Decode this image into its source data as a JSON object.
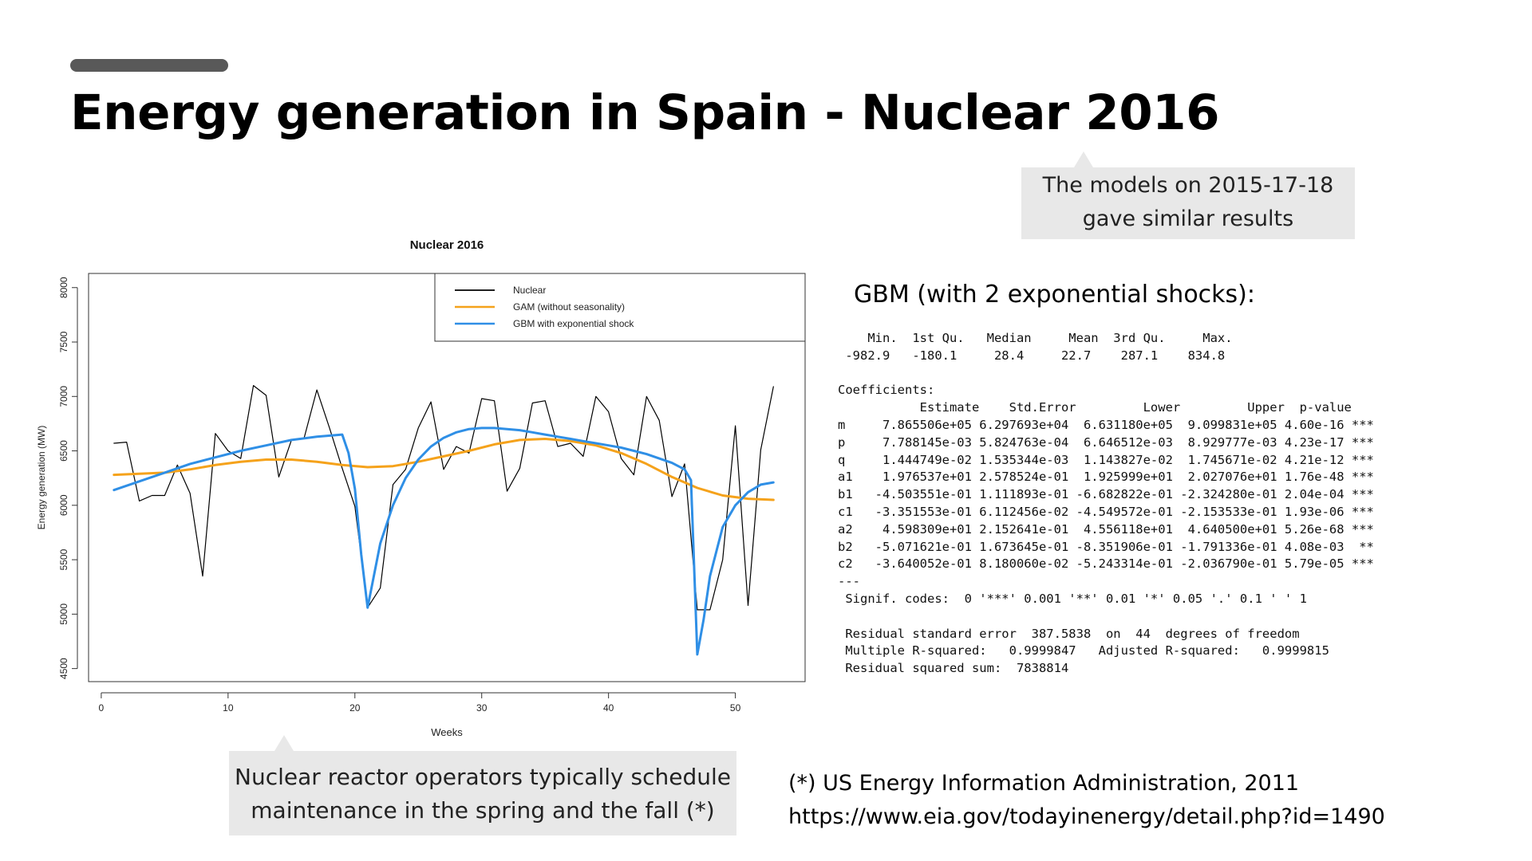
{
  "slide": {
    "title": "Energy generation in Spain -  Nuclear 2016",
    "accent_color": "#595959"
  },
  "callouts": {
    "top": [
      "The models on 2015-17-18",
      "gave similar results"
    ],
    "bottom": [
      "Nuclear reactor operators typically schedule",
      "maintenance in the spring and the fall  (*)"
    ]
  },
  "gbm": {
    "heading": "GBM (with 2 exponential shocks):",
    "output_lines": [
      "    Min.  1st Qu.   Median     Mean  3rd Qu.     Max.",
      " -982.9   -180.1     28.4     22.7    287.1    834.8",
      "",
      "Coefficients:",
      "           Estimate    Std.Error         Lower         Upper  p-value",
      "m     7.865506e+05 6.297693e+04  6.631180e+05  9.099831e+05 4.60e-16 ***",
      "p     7.788145e-03 5.824763e-04  6.646512e-03  8.929777e-03 4.23e-17 ***",
      "q     1.444749e-02 1.535344e-03  1.143827e-02  1.745671e-02 4.21e-12 ***",
      "a1    1.976537e+01 2.578524e-01  1.925999e+01  2.027076e+01 1.76e-48 ***",
      "b1   -4.503551e-01 1.111893e-01 -6.682822e-01 -2.324280e-01 2.04e-04 ***",
      "c1   -3.351553e-01 6.112456e-02 -4.549572e-01 -2.153533e-01 1.93e-06 ***",
      "a2    4.598309e+01 2.152641e-01  4.556118e+01  4.640500e+01 5.26e-68 ***",
      "b2   -5.071621e-01 1.673645e-01 -8.351906e-01 -1.791336e-01 4.08e-03  **",
      "c2   -3.640052e-01 8.180060e-02 -5.243314e-01 -2.036790e-01 5.79e-05 ***",
      "---",
      " Signif. codes:  0 '***' 0.001 '**' 0.01 '*' 0.05 '.' 0.1 ' ' 1",
      "",
      " Residual standard error  387.5838  on  44  degrees of freedom",
      " Multiple R-squared:   0.9999847   Adjusted R-squared:   0.9999815",
      " Residual squared sum:  7838814"
    ]
  },
  "reference": {
    "lines": [
      "(*) US Energy Information Administration, 2011",
      "https://www.eia.gov/todayinenergy/detail.php?id=1490"
    ]
  },
  "chart_data": {
    "type": "line",
    "title": "Nuclear 2016",
    "xlabel": "Weeks",
    "ylabel": "Energy generation (MW)",
    "xlim": [
      -1,
      55.5
    ],
    "ylim": [
      4380,
      8130
    ],
    "xticks": [
      0,
      10,
      20,
      30,
      40,
      50
    ],
    "yticks": [
      4500,
      5000,
      5500,
      6000,
      6500,
      7000,
      7500,
      8000
    ],
    "legend_position": "top-right",
    "series": [
      {
        "name": "Nuclear",
        "color": "#000000",
        "x": [
          1,
          2,
          3,
          4,
          5,
          6,
          7,
          8,
          9,
          10,
          11,
          12,
          13,
          14,
          15,
          16,
          17,
          18,
          19,
          20,
          21,
          22,
          23,
          24,
          25,
          26,
          27,
          28,
          29,
          30,
          31,
          32,
          33,
          34,
          35,
          36,
          37,
          38,
          39,
          40,
          41,
          42,
          43,
          44,
          45,
          46,
          47,
          48,
          49,
          50,
          51,
          52,
          53
        ],
        "y": [
          6570,
          6580,
          6040,
          6090,
          6090,
          6370,
          6110,
          5350,
          6660,
          6500,
          6430,
          7100,
          7010,
          6260,
          6600,
          6620,
          7060,
          6710,
          6340,
          5990,
          5060,
          5240,
          6190,
          6330,
          6710,
          6950,
          6330,
          6540,
          6480,
          6980,
          6960,
          6130,
          6340,
          6940,
          6960,
          6540,
          6570,
          6450,
          7000,
          6860,
          6430,
          6280,
          7000,
          6780,
          6080,
          6380,
          5040,
          5040,
          5500,
          6730,
          5080,
          6510,
          7090
        ]
      },
      {
        "name": "GAM (without seasonality)",
        "color": "#f5a21b",
        "x": [
          1,
          3,
          5,
          7,
          9,
          11,
          13,
          15,
          17,
          19,
          21,
          23,
          25,
          27,
          29,
          31,
          33,
          35,
          37,
          39,
          41,
          43,
          45,
          47,
          49,
          51,
          53
        ],
        "y": [
          6280,
          6290,
          6300,
          6330,
          6370,
          6400,
          6420,
          6420,
          6400,
          6370,
          6350,
          6360,
          6400,
          6450,
          6500,
          6560,
          6600,
          6610,
          6590,
          6550,
          6480,
          6380,
          6260,
          6160,
          6090,
          6060,
          6050
        ]
      },
      {
        "name": "GBM with exponential shock",
        "color": "#2f8fe6",
        "x": [
          1,
          3,
          5,
          7,
          9,
          11,
          13,
          15,
          17,
          19,
          19.5,
          20,
          20.5,
          21,
          22,
          23,
          24,
          25,
          26,
          27,
          28,
          29,
          30,
          31,
          32,
          33,
          34,
          35,
          36,
          37,
          38,
          39,
          40,
          41,
          42,
          43,
          44,
          45,
          46,
          46.5,
          47,
          47.5,
          48,
          49,
          50,
          51,
          52,
          53
        ],
        "y": [
          6140,
          6220,
          6300,
          6380,
          6440,
          6500,
          6550,
          6600,
          6630,
          6650,
          6480,
          6150,
          5550,
          5060,
          5650,
          6000,
          6250,
          6420,
          6540,
          6620,
          6670,
          6700,
          6710,
          6710,
          6700,
          6690,
          6670,
          6650,
          6630,
          6610,
          6590,
          6570,
          6550,
          6530,
          6500,
          6470,
          6430,
          6390,
          6330,
          6230,
          4630,
          4950,
          5350,
          5800,
          6000,
          6120,
          6190,
          6210
        ]
      }
    ]
  }
}
